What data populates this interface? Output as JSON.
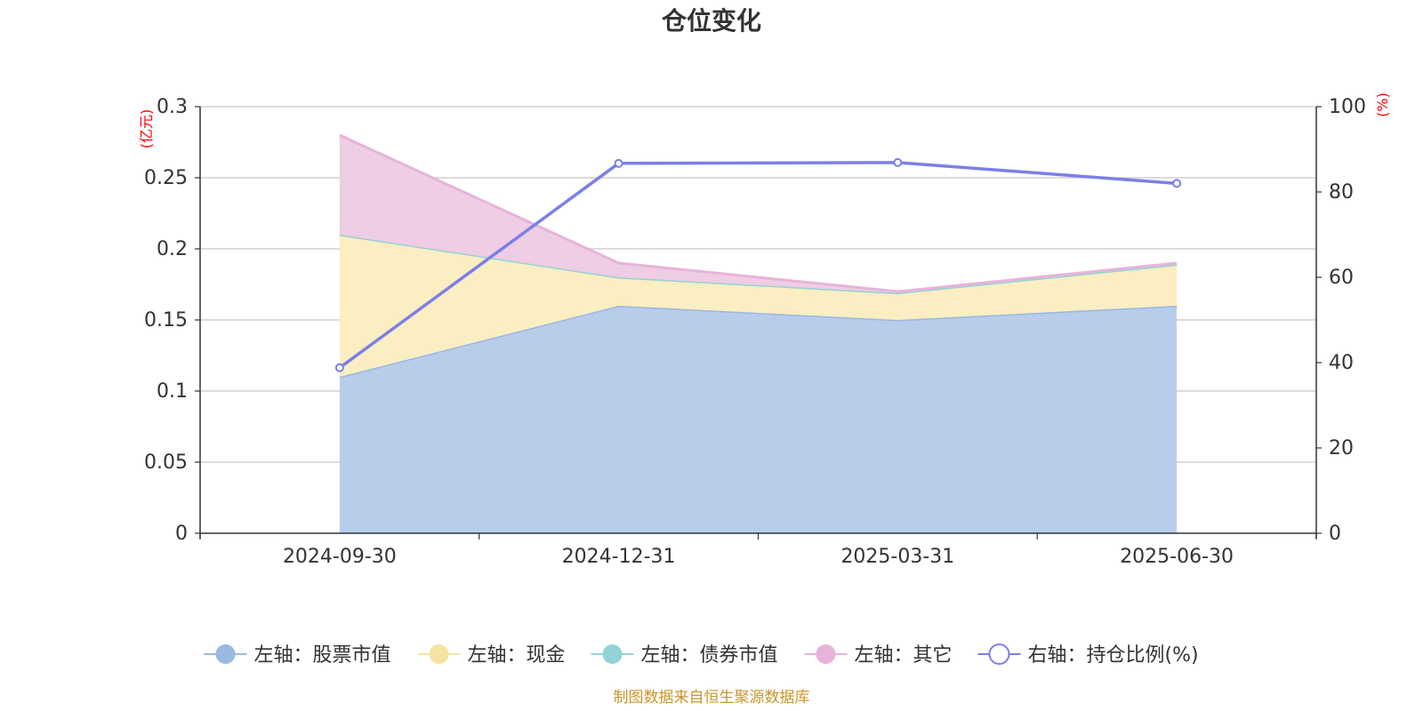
{
  "chart_data": {
    "type": "area",
    "title": "仓位变化",
    "categories": [
      "2024-09-30",
      "2024-12-31",
      "2025-03-31",
      "2025-06-30"
    ],
    "left_axis": {
      "unit": "(亿元)",
      "ylim": [
        0,
        0.3
      ],
      "ticks": [
        "0",
        "0.05",
        "0.1",
        "0.15",
        "0.2",
        "0.25",
        "0.3"
      ]
    },
    "right_axis": {
      "unit": "(%)",
      "ylim": [
        0,
        100
      ],
      "ticks": [
        "0",
        "20",
        "40",
        "60",
        "80",
        "100"
      ]
    },
    "stacked": true,
    "grid": true,
    "legend_position": "bottom",
    "series": [
      {
        "name": "左轴：股票市值",
        "axis": "left",
        "type": "area",
        "values": [
          0.11,
          0.16,
          0.15,
          0.16
        ],
        "color": "#9bb8e0",
        "fill": "#b8cdea"
      },
      {
        "name": "左轴：现金",
        "axis": "left",
        "type": "area",
        "values": [
          0.1,
          0.02,
          0.019,
          0.029
        ],
        "color": "#f6e3a1",
        "fill": "#faeec2"
      },
      {
        "name": "左轴：债券市值",
        "axis": "left",
        "type": "area",
        "values": [
          0,
          0,
          0,
          0
        ],
        "color": "#93d3d6",
        "fill": "#bde5e6"
      },
      {
        "name": "左轴：其它",
        "axis": "left",
        "type": "area",
        "values": [
          0.07,
          0.01,
          0.001,
          0.001
        ],
        "color": "#e7b3da",
        "fill": "#efcde4"
      },
      {
        "name": "右轴：持仓比例(%)",
        "axis": "right",
        "type": "line",
        "values": [
          38.8,
          86.7,
          86.9,
          82.0
        ],
        "color": "#7b7fe8"
      }
    ],
    "source": "制图数据来自恒生聚源数据库"
  }
}
